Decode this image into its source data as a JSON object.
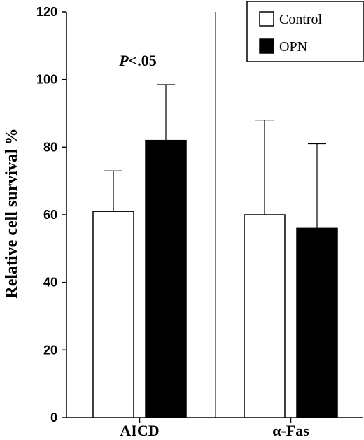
{
  "chart_data": {
    "type": "bar",
    "categories": [
      "AICD",
      "α-Fas"
    ],
    "series": [
      {
        "name": "Control",
        "values": [
          61,
          60
        ],
        "errors": [
          12,
          28
        ],
        "color": "#ffffff"
      },
      {
        "name": "OPN",
        "values": [
          82,
          56
        ],
        "errors": [
          16.5,
          25
        ],
        "color": "#000000"
      }
    ],
    "ylabel": "Relative cell survival %",
    "xlabel": "",
    "ylim": [
      0,
      120
    ],
    "yticks": [
      0,
      20,
      40,
      60,
      80,
      100,
      120
    ],
    "legend_position": "top-right",
    "annotation": {
      "italic": "P",
      "text": "<.05"
    },
    "grid": false
  }
}
